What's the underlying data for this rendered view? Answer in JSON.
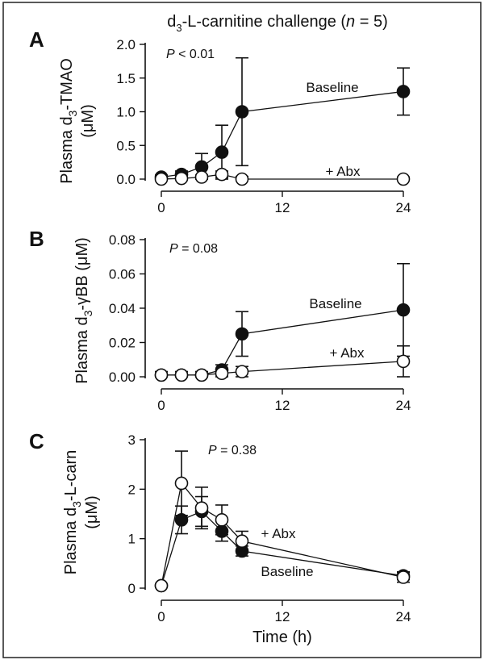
{
  "figure": {
    "title_prefix": "d",
    "title_sub": "3",
    "title_mid": "-L-carnitine challenge (",
    "title_n": "n",
    "title_suffix": " = 5)",
    "x_axis_title": "Time (h)"
  },
  "chart_data": [
    {
      "type": "line",
      "panel": "A",
      "ylabel_line1_pre": "Plasma d",
      "ylabel_line1_sub": "3",
      "ylabel_line1_post": "-TMAO",
      "ylabel_line2": "(μM)",
      "ylim": [
        0,
        2.0
      ],
      "yticks": [
        0,
        0.5,
        1.0,
        1.5,
        2.0
      ],
      "ytick_labels": [
        "0.0",
        "0.5",
        "1.0",
        "1.5",
        "2.0"
      ],
      "xlim": [
        0,
        24
      ],
      "xticks": [
        0,
        12,
        24
      ],
      "xtick_labels": [
        "0",
        "12",
        "24"
      ],
      "p_label": "P",
      "p_value": " < 0.01",
      "series": [
        {
          "name": "Baseline",
          "marker": "filled",
          "x": [
            0,
            2,
            4,
            6,
            8,
            24
          ],
          "y": [
            0.03,
            0.07,
            0.18,
            0.4,
            1.0,
            1.3
          ],
          "err": [
            0.03,
            0.05,
            0.2,
            0.4,
            0.8,
            0.35
          ]
        },
        {
          "name": "+ Abx",
          "marker": "open",
          "x": [
            0,
            2,
            4,
            6,
            8,
            24
          ],
          "y": [
            0.0,
            0.01,
            0.03,
            0.07,
            0.0,
            0.0
          ],
          "err": [
            0.02,
            0.02,
            0.03,
            0.05,
            0.04,
            0.03
          ]
        }
      ]
    },
    {
      "type": "line",
      "panel": "B",
      "ylabel_line1_pre": "Plasma d",
      "ylabel_line1_sub": "3",
      "ylabel_line1_post": "-γBB (μM)",
      "ylabel_line2": "",
      "ylim": [
        0,
        0.08
      ],
      "yticks": [
        0,
        0.02,
        0.04,
        0.06,
        0.08
      ],
      "ytick_labels": [
        "0.00",
        "0.02",
        "0.04",
        "0.06",
        "0.08"
      ],
      "xlim": [
        0,
        24
      ],
      "xticks": [
        0,
        12,
        24
      ],
      "xtick_labels": [
        "0",
        "12",
        "24"
      ],
      "p_label": "P",
      "p_value": " = 0.08",
      "series": [
        {
          "name": "Baseline",
          "marker": "filled",
          "x": [
            0,
            2,
            4,
            6,
            8,
            24
          ],
          "y": [
            0.001,
            0.001,
            0.001,
            0.004,
            0.025,
            0.039
          ],
          "err": [
            0.002,
            0.002,
            0.002,
            0.003,
            0.013,
            0.027
          ]
        },
        {
          "name": "+ Abx",
          "marker": "open",
          "x": [
            0,
            2,
            4,
            6,
            8,
            24
          ],
          "y": [
            0.001,
            0.001,
            0.001,
            0.002,
            0.003,
            0.009
          ],
          "err": [
            0.002,
            0.002,
            0.002,
            0.002,
            0.003,
            0.009
          ]
        }
      ]
    },
    {
      "type": "line",
      "panel": "C",
      "ylabel_line1_pre": "Plasma d",
      "ylabel_line1_sub": "3",
      "ylabel_line1_post": "-L-carn",
      "ylabel_line2": "(μM)",
      "ylim": [
        0,
        3
      ],
      "yticks": [
        0,
        1,
        2,
        3
      ],
      "ytick_labels": [
        "0",
        "1",
        "2",
        "3"
      ],
      "xlim": [
        0,
        24
      ],
      "xticks": [
        0,
        12,
        24
      ],
      "xtick_labels": [
        "0",
        "12",
        "24"
      ],
      "p_label": "P",
      "p_value": " = 0.38",
      "series": [
        {
          "name": "Baseline",
          "marker": "filled",
          "x": [
            0,
            2,
            4,
            6,
            8,
            24
          ],
          "y": [
            0.05,
            1.38,
            1.55,
            1.15,
            0.75,
            0.25
          ],
          "err": [
            0.03,
            0.28,
            0.3,
            0.2,
            0.1,
            0.08
          ]
        },
        {
          "name": "+ Abx",
          "marker": "open",
          "x": [
            0,
            2,
            4,
            6,
            8,
            24
          ],
          "y": [
            0.05,
            2.12,
            1.62,
            1.38,
            0.95,
            0.22
          ],
          "err": [
            0.03,
            0.65,
            0.42,
            0.3,
            0.2,
            0.1
          ]
        }
      ]
    }
  ]
}
